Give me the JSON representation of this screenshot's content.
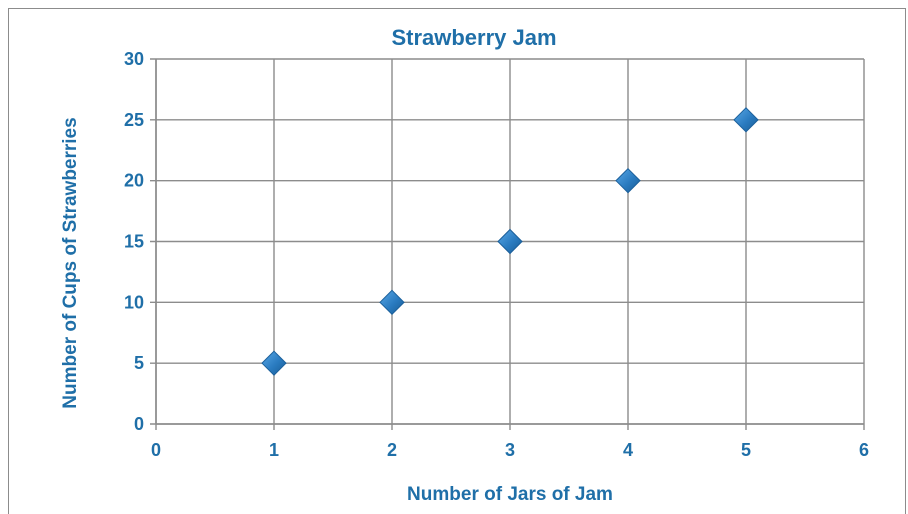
{
  "chart_data": {
    "type": "scatter",
    "title": "Strawberry Jam",
    "xlabel": "Number of Jars of Jam",
    "ylabel": "Number of Cups of Strawberries",
    "xlim": [
      0,
      6
    ],
    "ylim": [
      0,
      30
    ],
    "xticks": [
      0,
      1,
      2,
      3,
      4,
      5,
      6
    ],
    "yticks": [
      0,
      5,
      10,
      15,
      20,
      25,
      30
    ],
    "grid": true,
    "legend": "none",
    "marker": "diamond",
    "colors": {
      "text": "#1f6fa8",
      "marker": "#2a7bc0",
      "marker_edge": "#1b5f9a",
      "grid": "#8c8c8c"
    },
    "series": [
      {
        "x": [
          1,
          2,
          3,
          4,
          5
        ],
        "y": [
          5,
          10,
          15,
          20,
          25
        ]
      }
    ]
  }
}
